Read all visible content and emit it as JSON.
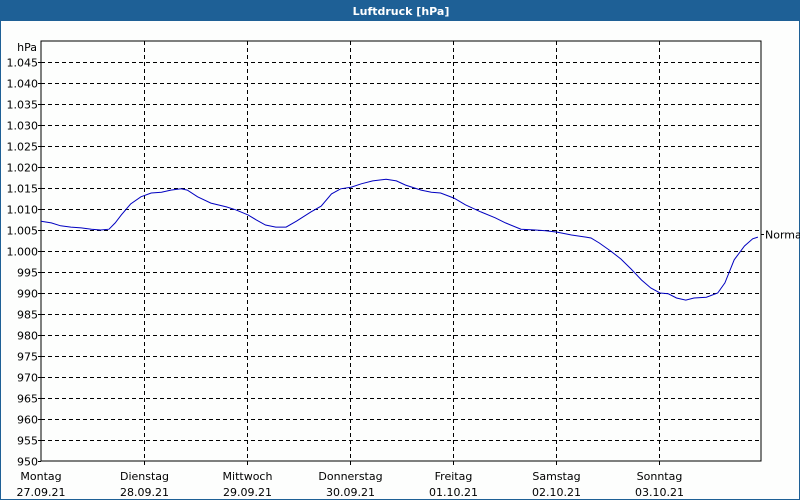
{
  "window": {
    "title": "Luftdruck [hPa]"
  },
  "chart_data": {
    "type": "line",
    "title": "Luftdruck [hPa]",
    "ylabel": "hPa",
    "xlabel": "",
    "ylim": [
      950,
      1050
    ],
    "y_ticks": [
      "1.045",
      "1.040",
      "1.035",
      "1.030",
      "1.025",
      "1.020",
      "1.015",
      "1.010",
      "1.005",
      "1.000",
      "995",
      "990",
      "985",
      "980",
      "975",
      "970",
      "965",
      "960",
      "955",
      "950"
    ],
    "y_tick_values": [
      1045,
      1040,
      1035,
      1030,
      1025,
      1020,
      1015,
      1010,
      1005,
      1000,
      995,
      990,
      985,
      980,
      975,
      970,
      965,
      960,
      955,
      950
    ],
    "x_ticks": [
      {
        "day": "Montag",
        "date": "27.09.21"
      },
      {
        "day": "Dienstag",
        "date": "28.09.21"
      },
      {
        "day": "Mittwoch",
        "date": "29.09.21"
      },
      {
        "day": "Donnerstag",
        "date": "30.09.21"
      },
      {
        "day": "Freitag",
        "date": "01.10.21"
      },
      {
        "day": "Samstag",
        "date": "02.10.21"
      },
      {
        "day": "Sonntag",
        "date": "03.10.21"
      }
    ],
    "grid": true,
    "reference_line": {
      "label": "Normal",
      "value": 1004
    },
    "series": [
      {
        "name": "Luftdruck",
        "color": "#0000c0",
        "x_days": [
          0.0,
          0.1,
          0.19,
          0.29,
          0.39,
          0.49,
          0.58,
          0.66,
          0.72,
          0.78,
          0.87,
          0.97,
          1.07,
          1.17,
          1.26,
          1.36,
          1.42,
          1.52,
          1.65,
          1.8,
          1.89,
          2.01,
          2.09,
          2.18,
          2.28,
          2.38,
          2.48,
          2.62,
          2.72,
          2.82,
          2.91,
          3.01,
          3.11,
          3.22,
          3.35,
          3.45,
          3.54,
          3.69,
          3.79,
          3.88,
          4.01,
          4.12,
          4.27,
          4.41,
          4.51,
          4.66,
          4.8,
          4.9,
          5.01,
          5.15,
          5.29,
          5.34,
          5.42,
          5.53,
          5.63,
          5.73,
          5.83,
          5.92,
          6.01,
          6.09,
          6.17,
          6.26,
          6.34,
          6.46,
          6.57,
          6.64,
          6.73,
          6.83,
          6.91,
          6.96
        ],
        "values": [
          1007.1,
          1006.7,
          1006.0,
          1005.7,
          1005.5,
          1005.2,
          1005.0,
          1005.2,
          1006.7,
          1008.6,
          1011.2,
          1012.9,
          1013.8,
          1014.0,
          1014.5,
          1014.8,
          1014.5,
          1012.9,
          1011.4,
          1010.5,
          1009.8,
          1008.6,
          1007.4,
          1006.2,
          1005.7,
          1005.7,
          1007.1,
          1009.3,
          1010.7,
          1013.6,
          1014.8,
          1015.2,
          1016.0,
          1016.7,
          1017.1,
          1016.7,
          1015.7,
          1014.5,
          1014.0,
          1013.8,
          1012.6,
          1011.0,
          1009.3,
          1007.9,
          1006.7,
          1005.2,
          1005.0,
          1004.8,
          1004.5,
          1003.8,
          1003.3,
          1003.1,
          1001.9,
          1000.0,
          998.1,
          995.7,
          993.1,
          991.2,
          990.0,
          989.8,
          988.8,
          988.3,
          988.8,
          989.0,
          990.0,
          992.4,
          997.9,
          1001.2,
          1002.9,
          1003.3
        ]
      }
    ]
  }
}
